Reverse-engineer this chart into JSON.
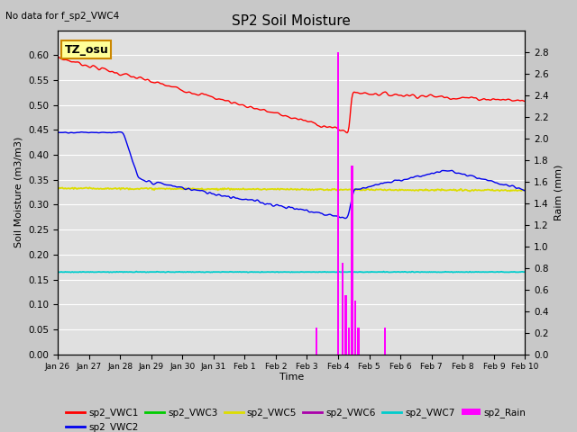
{
  "title": "SP2 Soil Moisture",
  "no_data_text": "No data for f_sp2_VWC4",
  "ylabel_left": "Soil Moisture (m3/m3)",
  "ylabel_right": "Raim (mm)",
  "xlabel": "Time",
  "ylim_left": [
    0.0,
    0.65
  ],
  "ylim_right": [
    0.0,
    3.0
  ],
  "fig_bg_color": "#c8c8c8",
  "plot_bg_color": "#e0e0e0",
  "tz_label": "TZ_osu",
  "x_tick_labels": [
    "Jan 26",
    "Jan 27",
    "Jan 28",
    "Jan 29",
    "Jan 30",
    "Jan 31",
    "Feb 1",
    "Feb 2",
    "Feb 3",
    "Feb 4",
    "Feb 5",
    "Feb 6",
    "Feb 7",
    "Feb 8",
    "Feb 9",
    "Feb 10"
  ],
  "vwc1_color": "#ff0000",
  "vwc2_color": "#0000ee",
  "vwc3_color": "#00cc00",
  "vwc5_color": "#dddd00",
  "vwc6_color": "#aa00aa",
  "vwc7_color": "#00cccc",
  "rain_color": "#ff00ff",
  "grid_color": "#ffffff",
  "yticks_left": [
    0.0,
    0.05,
    0.1,
    0.15,
    0.2,
    0.25,
    0.3,
    0.35,
    0.4,
    0.45,
    0.5,
    0.55,
    0.6
  ],
  "yticks_right": [
    0.0,
    0.2,
    0.4,
    0.6,
    0.8,
    1.0,
    1.2,
    1.4,
    1.6,
    1.8,
    2.0,
    2.2,
    2.4,
    2.6,
    2.8
  ],
  "rain_events": {
    "t": [
      8.3,
      9.0,
      9.15,
      9.25,
      9.35,
      9.45,
      9.55,
      9.65,
      10.5
    ],
    "v": [
      0.25,
      2.8,
      0.85,
      0.55,
      0.25,
      1.75,
      0.5,
      0.25,
      0.25
    ]
  }
}
